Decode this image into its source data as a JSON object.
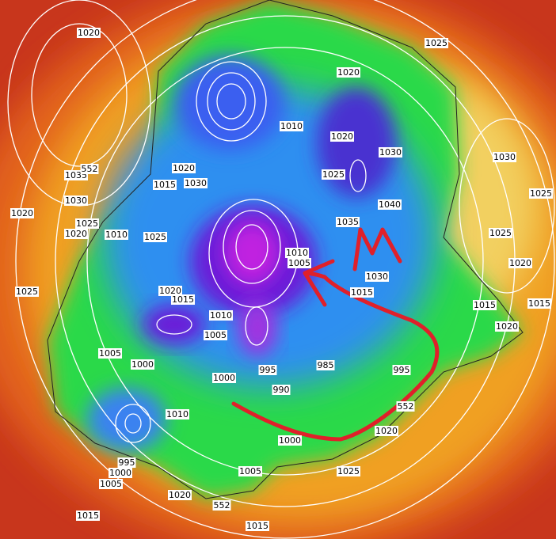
{
  "map": {
    "isobar_labels": [
      "1020",
      "1025",
      "1020",
      "1010",
      "1020",
      "1030",
      "1030",
      "1035",
      "552",
      "1020",
      "1030",
      "1015",
      "1025",
      "1025",
      "1030",
      "1040",
      "1020",
      "1025",
      "1020",
      "1010",
      "1035",
      "1025",
      "1025",
      "1010",
      "1005",
      "1020",
      "1030",
      "1015",
      "1025",
      "1020",
      "1015",
      "1015",
      "1015",
      "1010",
      "1005",
      "1020",
      "1005",
      "1000",
      "995",
      "985",
      "995",
      "1000",
      "990",
      "1010",
      "552",
      "995",
      "1000",
      "1005",
      "1005",
      "1025",
      "1020",
      "1020",
      "1000",
      "552",
      "1015",
      "1015"
    ],
    "annotation": "M"
  }
}
